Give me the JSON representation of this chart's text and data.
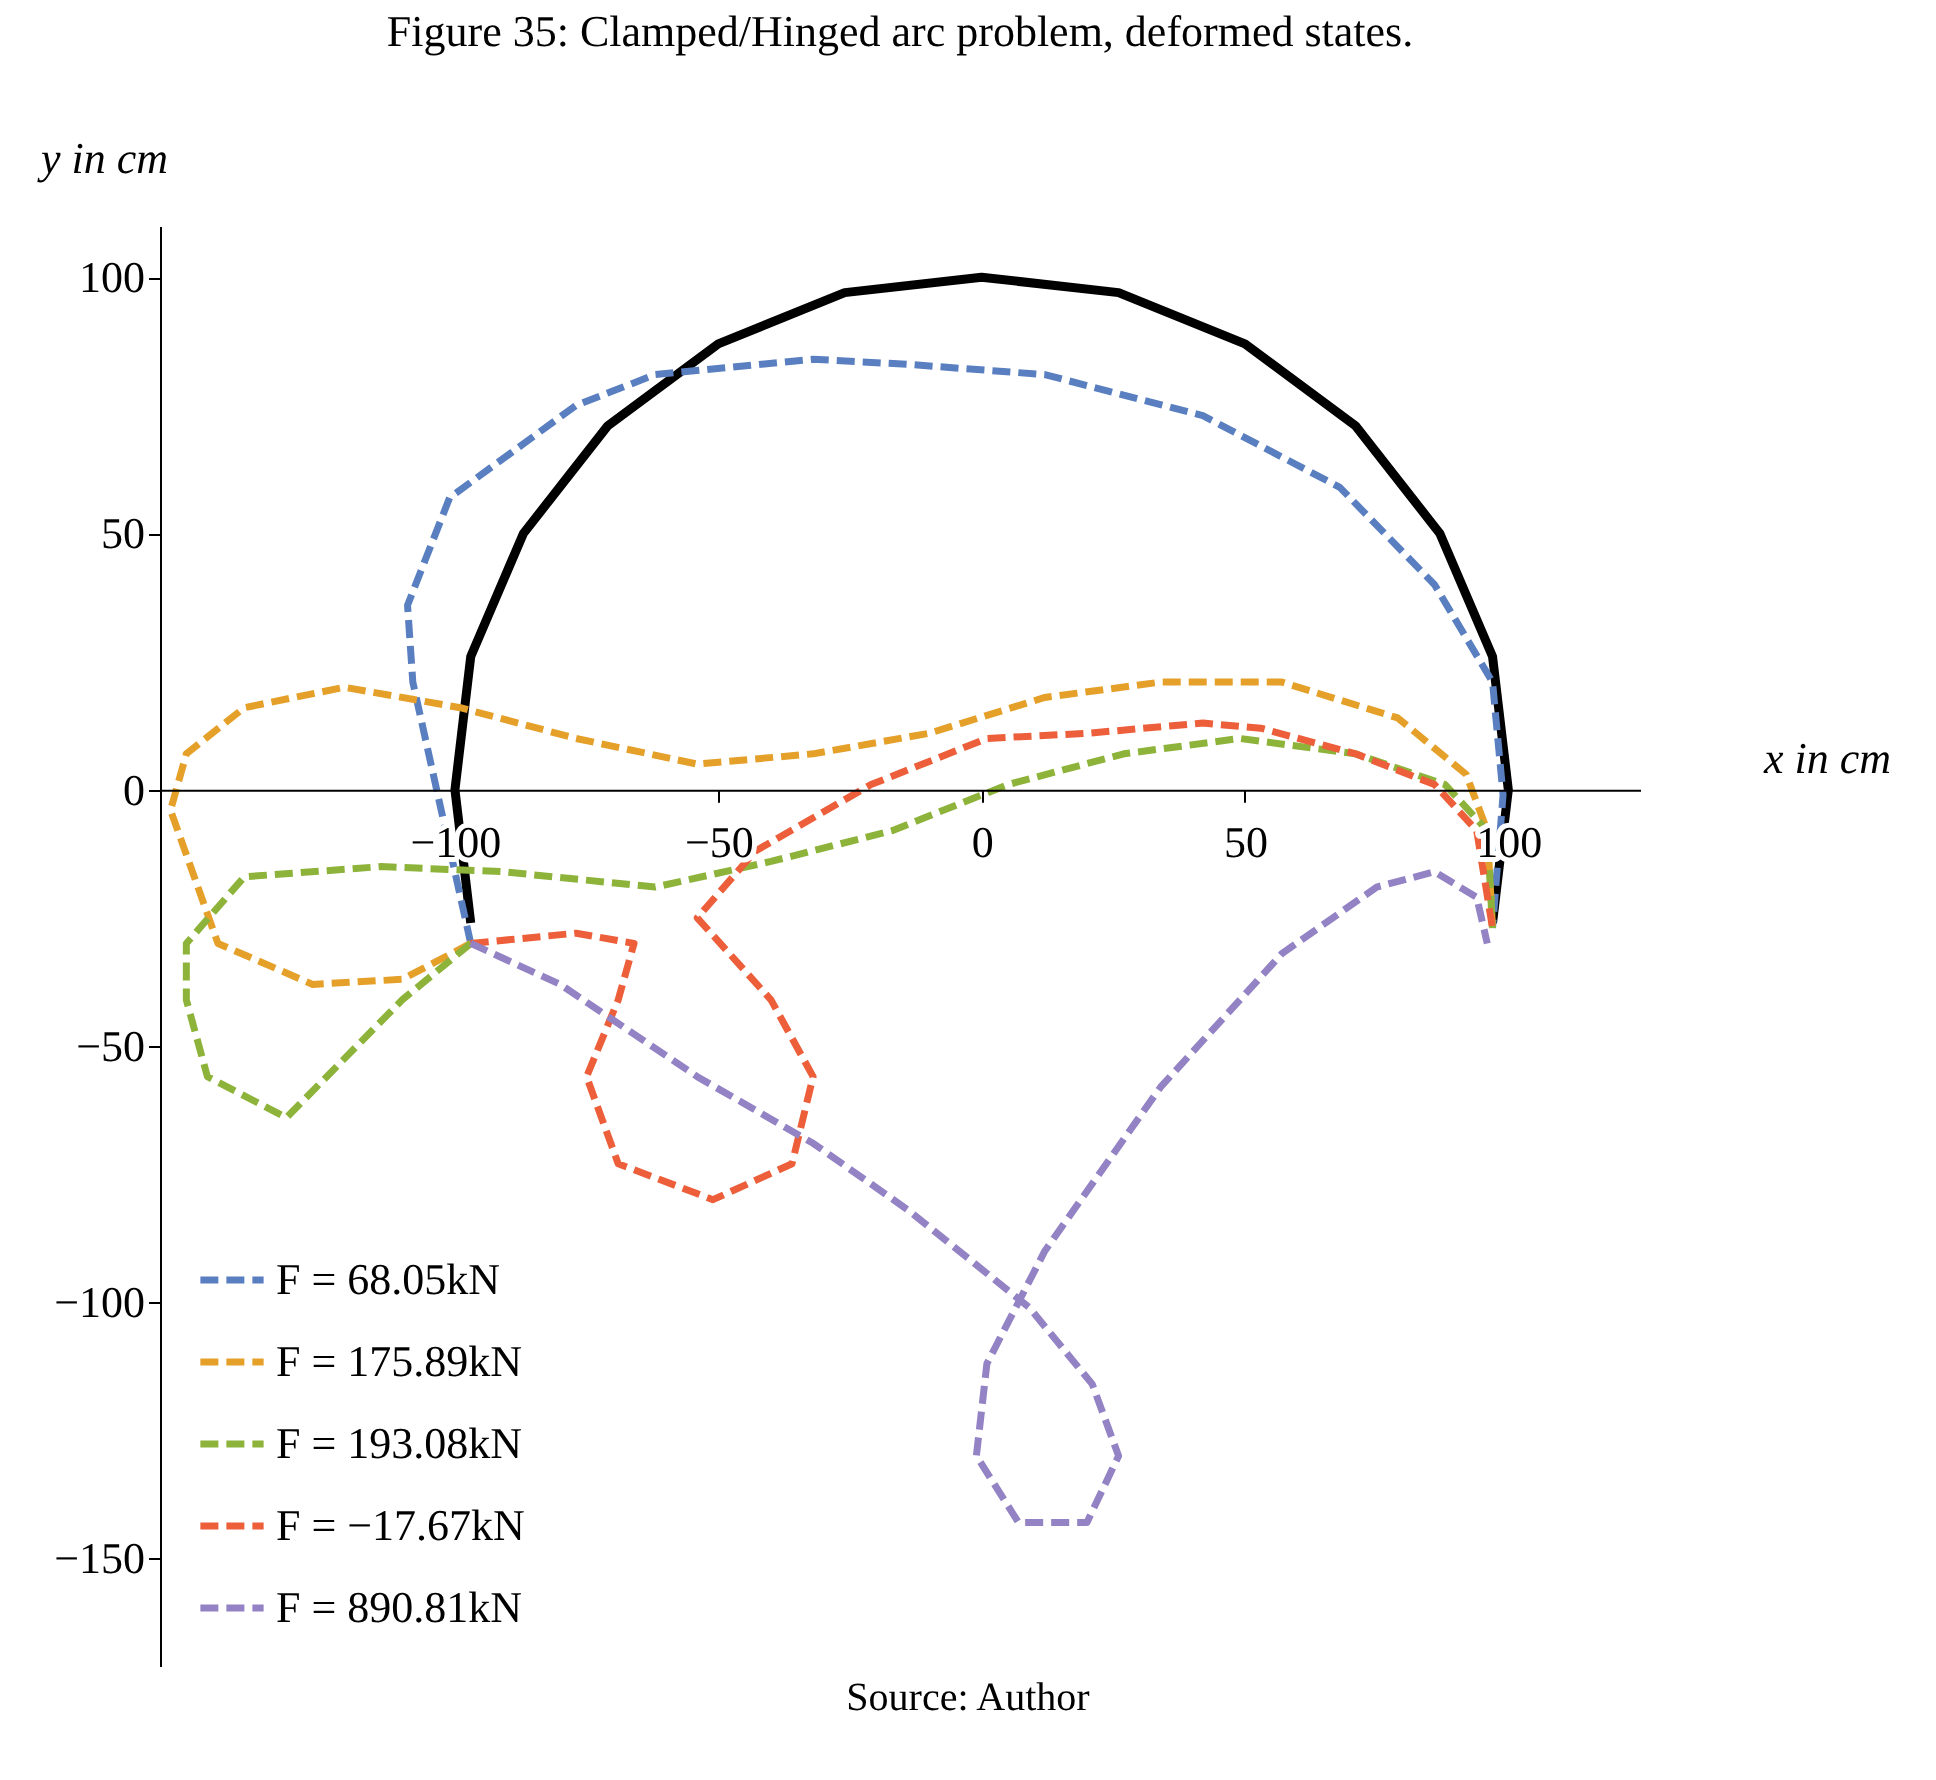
{
  "chart_data": {
    "type": "line",
    "title": "Figure 35: Clamped/Hinged arc problem, deformed states.",
    "xlabel": "x in cm",
    "ylabel": "y in cm",
    "annotations": [
      "Source: Author"
    ],
    "xlim": [
      -156,
      125
    ],
    "ylim": [
      -171,
      110
    ],
    "xticks": [
      {
        "value": -100,
        "label": "−100"
      },
      {
        "value": -50,
        "label": "−50"
      },
      0,
      50,
      100
    ],
    "yticks": [
      {
        "value": -150,
        "label": "−150"
      },
      {
        "value": -100,
        "label": "−100"
      },
      {
        "value": -50,
        "label": "−50"
      },
      0,
      50,
      100
    ],
    "grid": false,
    "legend": "bottom left",
    "series": [
      {
        "color": "#000000",
        "line_style": "solid",
        "x": [
          97,
          100,
          97,
          87,
          71,
          50,
          26,
          0,
          -26,
          -50,
          -71,
          -87,
          -97,
          -100,
          -97
        ],
        "values": [
          -26,
          0,
          26,
          50,
          71,
          87,
          97,
          100,
          97,
          87,
          71,
          50,
          26,
          0,
          -26
        ]
      },
      {
        "name": "F = 68.05kN",
        "color": "#5a7fc0",
        "line_style": "dashed",
        "x": [
          -97,
          -108,
          -109,
          -101,
          -77,
          -62,
          -32,
          -14,
          12,
          42,
          68,
          86,
          97,
          99,
          97
        ],
        "values": [
          -30,
          21,
          36,
          57,
          75,
          81,
          84,
          83,
          81,
          73,
          59,
          40,
          21,
          -1,
          -27
        ]
      },
      {
        "name": "F = 175.89kN",
        "color": "#e5a02a",
        "line_style": "dashed",
        "x": [
          -97,
          -110,
          -127,
          -145,
          -154,
          -151,
          -140,
          -121,
          -99,
          -77,
          -54,
          -32,
          -10,
          12,
          34,
          57,
          79,
          92,
          96,
          97
        ],
        "values": [
          -30,
          -37,
          -38,
          -30,
          -4,
          7,
          16,
          20,
          16,
          10,
          5,
          7,
          11,
          18,
          21,
          21,
          14,
          3,
          -8,
          -27
        ]
      },
      {
        "name": "F = 193.08kN",
        "color": "#8db33a",
        "line_style": "dashed",
        "x": [
          -97,
          -110,
          -132,
          -147,
          -151,
          -151,
          -140,
          -114,
          -91,
          -62,
          -40,
          -17,
          5,
          27,
          49,
          71,
          88,
          96,
          97
        ],
        "values": [
          -30,
          -41,
          -64,
          -56,
          -41,
          -30,
          -17,
          -15,
          -16,
          -19,
          -14,
          -8,
          1,
          7,
          10,
          7,
          1,
          -8,
          -27
        ]
      },
      {
        "name": "F = −17.67kN",
        "color": "#ec5f3a",
        "line_style": "dashed",
        "x": [
          -97,
          -77,
          -66,
          -69,
          -75,
          -69,
          -51,
          -36,
          -32,
          -40,
          -54,
          -43,
          -21,
          1,
          20,
          42,
          53,
          71,
          86,
          94,
          97
        ],
        "values": [
          -30,
          -28,
          -30,
          -41,
          -56,
          -73,
          -80,
          -73,
          -56,
          -41,
          -25,
          -12,
          1,
          10,
          11,
          13,
          12,
          7,
          1,
          -8,
          -27
        ]
      },
      {
        "name": "F = 890.81kN",
        "color": "#9382c4",
        "line_style": "dashed",
        "x": [
          -97,
          -80,
          -54,
          -32,
          -14,
          9,
          21,
          26,
          20,
          7,
          -1,
          1,
          12,
          34,
          57,
          75,
          86,
          94,
          96
        ],
        "values": [
          -30,
          -38,
          -56,
          -69,
          -82,
          -101,
          -116,
          -130,
          -143,
          -143,
          -130,
          -112,
          -90,
          -58,
          -32,
          -19,
          -16,
          -21,
          -30
        ]
      }
    ]
  }
}
